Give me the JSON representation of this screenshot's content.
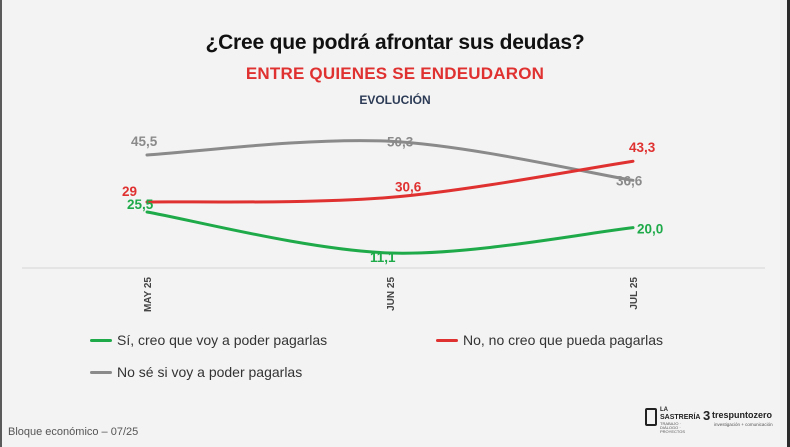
{
  "title": "¿Cree que podrá afrontar sus deudas?",
  "subtitle": "ENTRE QUIENES SE ENDEUDARON",
  "subsubtitle": "EVOLUCIÓN",
  "footer": "Bloque económico – 07/25",
  "logos": {
    "sastreria_line1": "LA",
    "sastreria_line2": "SASTRERÍA",
    "sastreria_line3": "TRABAJO · DIÁLOGO · PROYECTOS",
    "trespuntozero_glyph": "3",
    "trespuntozero_name": "trespuntozero",
    "trespuntozero_tag": "investigación + comunicación"
  },
  "chart_data": {
    "type": "line",
    "categories": [
      "MAY 25",
      "JUN 25",
      "JUL 25"
    ],
    "series": [
      {
        "name": "Sí, creo que voy a poder pagarlas",
        "color": "#1faa4a",
        "values": [
          25.5,
          11.1,
          20.0
        ],
        "labels": [
          "25,5",
          "11,1",
          "20,0"
        ]
      },
      {
        "name": "No, no creo que pueda pagarlas",
        "color": "#e03131",
        "values": [
          29,
          30.6,
          43.3
        ],
        "labels": [
          "29",
          "30,6",
          "43,3"
        ]
      },
      {
        "name": "No sé si voy a poder pagarlas",
        "color": "#8a8a8a",
        "values": [
          45.5,
          50.3,
          36.6
        ],
        "labels": [
          "45,5",
          "50,3",
          "36,6"
        ]
      }
    ],
    "legend_position": "bottom",
    "grid": false
  }
}
